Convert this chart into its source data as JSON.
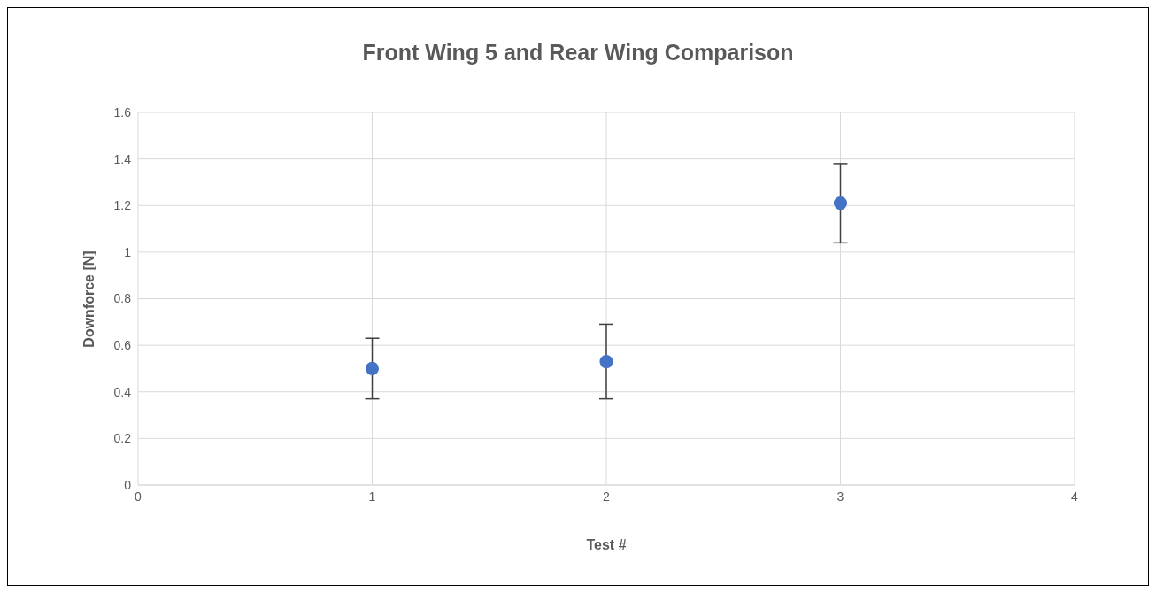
{
  "chart_data": {
    "type": "scatter",
    "title": "Front Wing 5 and Rear Wing Comparison",
    "xlabel": "Test #",
    "ylabel": "Downforce [N]",
    "x": [
      1,
      2,
      3
    ],
    "values": [
      0.5,
      0.53,
      1.21
    ],
    "errors": [
      0.13,
      0.16,
      0.17
    ],
    "color": "#4472c4",
    "xlim": [
      0,
      4
    ],
    "xticks": [
      0,
      1,
      2,
      3,
      4
    ],
    "ylim": [
      0,
      1.6
    ],
    "yticks": [
      0,
      0.2,
      0.4,
      0.6,
      0.8,
      1,
      1.2,
      1.4,
      1.6
    ],
    "grid": true,
    "marker": "circle"
  }
}
